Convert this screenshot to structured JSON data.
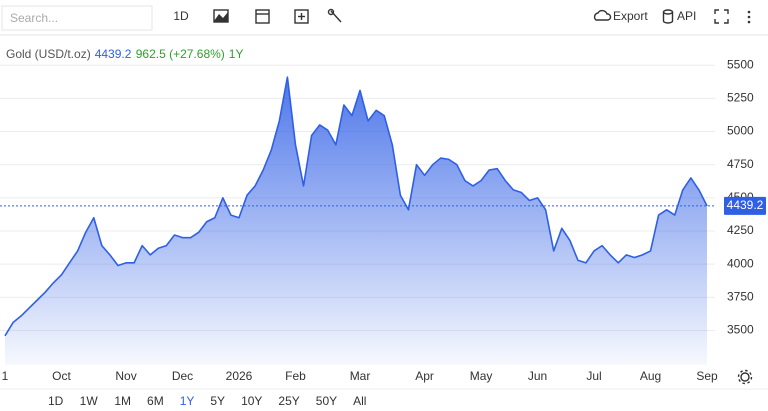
{
  "toolbar": {
    "search_placeholder": "Search...",
    "interval": "1D",
    "export": "Export",
    "api": "API"
  },
  "legend": {
    "change": "962.5 (+27.68%)",
    "period": "1Y"
  },
  "range_buttons": [
    "1D",
    "1W",
    "1M",
    "6M",
    "1Y",
    "5Y",
    "10Y",
    "25Y",
    "50Y",
    "All"
  ],
  "active_range_index": 4,
  "chart_data": {
    "type": "line",
    "categories": [
      "1",
      null,
      null,
      null,
      null,
      null,
      null,
      "Oct",
      null,
      null,
      null,
      null,
      null,
      null,
      null,
      "Nov",
      null,
      null,
      null,
      null,
      null,
      null,
      "Dec",
      null,
      null,
      null,
      null,
      null,
      null,
      "2026",
      null,
      null,
      null,
      null,
      null,
      null,
      "Feb",
      null,
      null,
      null,
      null,
      null,
      null,
      null,
      "Mar",
      null,
      null,
      null,
      null,
      null,
      null,
      null,
      "Apr",
      null,
      null,
      null,
      null,
      null,
      null,
      "May",
      null,
      null,
      null,
      null,
      null,
      null,
      "Jun",
      null,
      null,
      null,
      null,
      null,
      null,
      "Jul",
      null,
      null,
      null,
      null,
      null,
      null,
      "Aug",
      null,
      null,
      null,
      null,
      null,
      null,
      "Sep"
    ],
    "series": [
      {
        "name": "Gold (USD/t.oz)",
        "color": "#2f5fe6",
        "values": [
          3460,
          3560,
          3610,
          3670,
          3730,
          3790,
          3860,
          3920,
          4010,
          4100,
          4240,
          4350,
          4140,
          4070,
          3990,
          4010,
          4010,
          4140,
          4070,
          4120,
          4140,
          4220,
          4200,
          4200,
          4240,
          4320,
          4350,
          4500,
          4370,
          4350,
          4520,
          4590,
          4710,
          4860,
          5080,
          5410,
          4900,
          4590,
          4970,
          5050,
          5010,
          4900,
          5200,
          5120,
          5310,
          5080,
          5160,
          5120,
          4900,
          4520,
          4410,
          4750,
          4670,
          4750,
          4800,
          4790,
          4750,
          4630,
          4590,
          4630,
          4710,
          4720,
          4630,
          4560,
          4540,
          4480,
          4500,
          4410,
          4100,
          4270,
          4180,
          4030,
          4010,
          4100,
          4140,
          4070,
          4010,
          4070,
          4050,
          4070,
          4100,
          4370,
          4410,
          4370,
          4560,
          4650,
          4560,
          4439.2
        ]
      }
    ],
    "ylim": [
      3240,
      5690
    ],
    "yticks": [
      3500,
      3750,
      4000,
      4250,
      4500,
      4750,
      5000,
      5250,
      5500
    ],
    "grid": true,
    "last_price_line": true
  }
}
